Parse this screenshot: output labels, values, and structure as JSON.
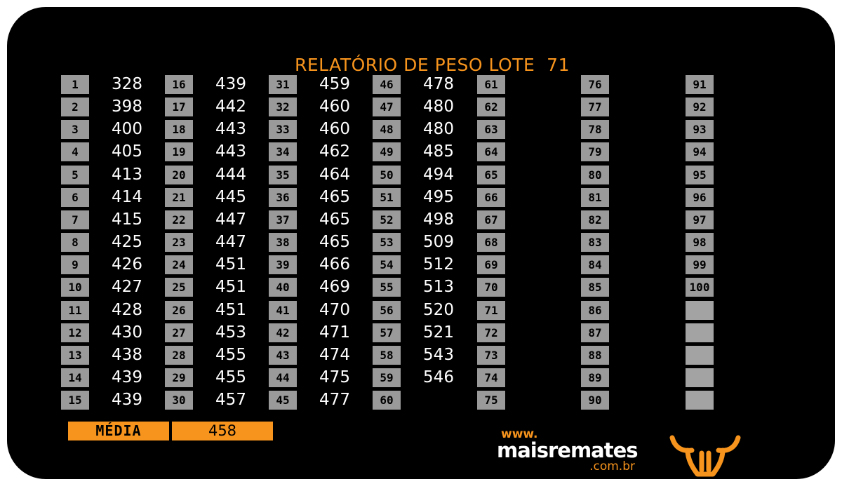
{
  "title": "RELATÓRIO DE PESO LOTE  71",
  "numbers": [
    "1",
    "2",
    "3",
    "4",
    "5",
    "6",
    "7",
    "8",
    "9",
    "10",
    "11",
    "12",
    "13",
    "14",
    "15",
    "16",
    "17",
    "18",
    "19",
    "20",
    "21",
    "22",
    "23",
    "24",
    "25",
    "26",
    "27",
    "28",
    "29",
    "30",
    "31",
    "32",
    "33",
    "34",
    "35",
    "36",
    "37",
    "38",
    "39",
    "40",
    "41",
    "42",
    "43",
    "44",
    "45",
    "46",
    "47",
    "48",
    "49",
    "50",
    "51",
    "52",
    "53",
    "54",
    "55",
    "56",
    "57",
    "58",
    "59",
    "60",
    "61",
    "62",
    "63",
    "64",
    "65",
    "66",
    "67",
    "68",
    "69",
    "70",
    "71",
    "72",
    "73",
    "74",
    "75",
    "76",
    "77",
    "78",
    "79",
    "80",
    "81",
    "82",
    "83",
    "84",
    "85",
    "86",
    "87",
    "88",
    "89",
    "90",
    "91",
    "92",
    "93",
    "94",
    "95",
    "96",
    "97",
    "98",
    "99",
    "100",
    "",
    "",
    "",
    "",
    ""
  ],
  "weights": [
    "328",
    "398",
    "400",
    "405",
    "413",
    "414",
    "415",
    "425",
    "426",
    "427",
    "428",
    "430",
    "438",
    "439",
    "439",
    "439",
    "442",
    "443",
    "443",
    "444",
    "445",
    "447",
    "447",
    "451",
    "451",
    "451",
    "453",
    "455",
    "455",
    "457",
    "459",
    "460",
    "460",
    "462",
    "464",
    "465",
    "465",
    "465",
    "466",
    "469",
    "470",
    "471",
    "474",
    "475",
    "477",
    "478",
    "480",
    "480",
    "485",
    "494",
    "495",
    "498",
    "509",
    "512",
    "513",
    "520",
    "521",
    "543",
    "546",
    "",
    "",
    "",
    "",
    "",
    "",
    "",
    "",
    "",
    "",
    "",
    "",
    "",
    "",
    "",
    "",
    "",
    "",
    "",
    "",
    "",
    "",
    "",
    "",
    "",
    "",
    "",
    "",
    "",
    "",
    "",
    "",
    "",
    "",
    "",
    "",
    "",
    "",
    "",
    "",
    "",
    "",
    "",
    "",
    "",
    ""
  ],
  "summary": {
    "label": "MÉDIA",
    "value": "458"
  },
  "brand": {
    "www": "www.",
    "name": "maisremates",
    "domain": ".com.br",
    "logo_icon": "bull-horns-icon",
    "accent_color": "#f7941d"
  }
}
